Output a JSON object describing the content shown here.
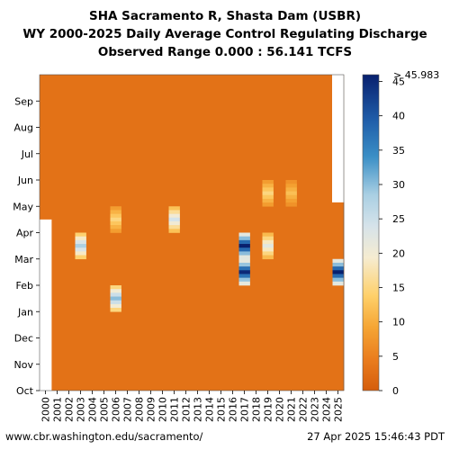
{
  "page": {
    "title_line1": "SHA Sacramento R, Shasta Dam (USBR)",
    "title_line2": "WY 2000-2025 Daily Average Control Regulating Discharge",
    "title_line3": "Observed Range 0.000 : 56.141 TCFS",
    "footer_left": "www.cbr.washington.edu/sacramento/",
    "footer_right": "27 Apr 2025 15:46:43 PDT"
  },
  "colors": {
    "base": "#d55d0b",
    "missing": "#ffffff",
    "scale": [
      "#d55d0b",
      "#f5a534",
      "#fed06a",
      "#f6ecd0",
      "#a9cfe3",
      "#3b8fc6",
      "#08206e"
    ]
  },
  "chart_data": {
    "type": "heatmap",
    "title": "SHA Sacramento R, Shasta Dam (USBR) — WY 2000-2025 Daily Average Control Regulating Discharge",
    "subtitle": "Observed Range 0.000 : 56.141 TCFS",
    "x_categories": [
      "2000",
      "2001",
      "2002",
      "2003",
      "2004",
      "2005",
      "2006",
      "2007",
      "2008",
      "2009",
      "2010",
      "2011",
      "2012",
      "2013",
      "2014",
      "2015",
      "2016",
      "2017",
      "2018",
      "2019",
      "2020",
      "2021",
      "2022",
      "2023",
      "2024",
      "2025"
    ],
    "y_categories": [
      "Oct",
      "Nov",
      "Dec",
      "Jan",
      "Feb",
      "Mar",
      "Apr",
      "May",
      "Jun",
      "Jul",
      "Aug",
      "Sep"
    ],
    "colorbar": {
      "range": [
        0,
        45.983
      ],
      "ticks": [
        0,
        5,
        10,
        15,
        20,
        25,
        30,
        35,
        40,
        45
      ],
      "over_label": "> 45.983",
      "units": "TCFS"
    },
    "baseline_value": 3,
    "missing": [
      {
        "year": "2000",
        "from": "Oct",
        "to": "Apr",
        "note": "no data before mid-April WY2000"
      },
      {
        "year": "2025",
        "from": "May",
        "to": "Sep",
        "note": "no data after late April WY2025"
      }
    ],
    "features": [
      {
        "year": "2003",
        "month": "Mar",
        "value": 28
      },
      {
        "year": "2006",
        "month": "Jan",
        "value": 30
      },
      {
        "year": "2006",
        "month": "Apr",
        "value": 15
      },
      {
        "year": "2011",
        "month": "Apr",
        "value": 24
      },
      {
        "year": "2017",
        "month": "Feb",
        "value": 45
      },
      {
        "year": "2017",
        "month": "Mar",
        "value": 46
      },
      {
        "year": "2019",
        "month": "Mar",
        "value": 22
      },
      {
        "year": "2019",
        "month": "May",
        "value": 15
      },
      {
        "year": "2021",
        "month": "May",
        "value": 12
      },
      {
        "year": "2025",
        "month": "Feb",
        "value": 46
      }
    ]
  }
}
